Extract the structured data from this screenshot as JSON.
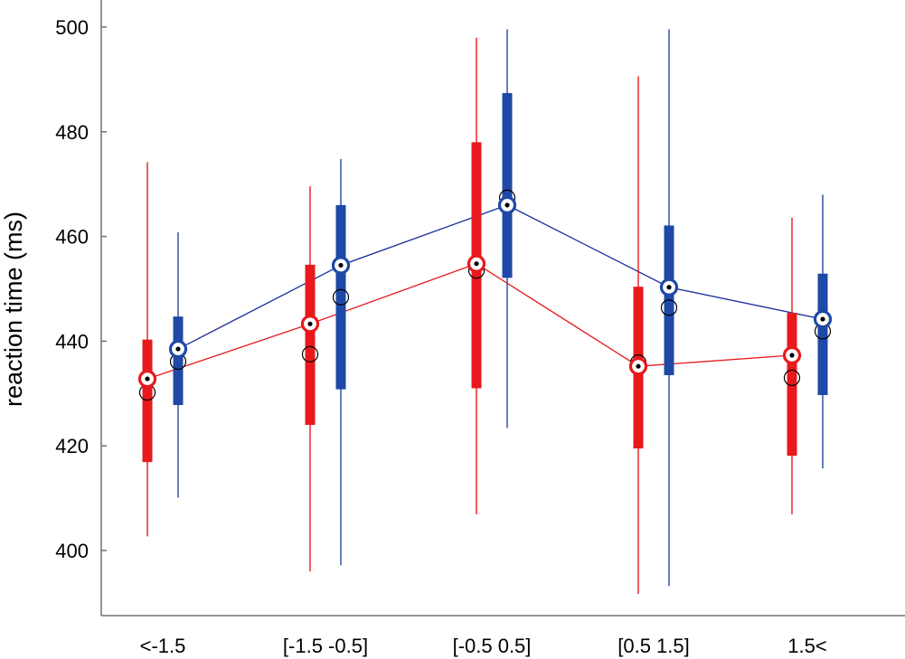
{
  "chart_data": {
    "type": "box",
    "title": "",
    "xlabel": "",
    "ylabel": "reaction time (ms)",
    "ylim": [
      389,
      504
    ],
    "yticks": [
      400,
      420,
      440,
      460,
      480,
      500
    ],
    "categories": [
      "<-1.5",
      "[-1.5 -0.5]",
      "[-0.5 0.5]",
      "[0.5 1.5]",
      "1.5<"
    ],
    "grid": false,
    "legend": "none",
    "series": [
      {
        "color": "#e8191c",
        "line_color": "#e8191c",
        "whisker_low": [
          402.7,
          396.0,
          406.9,
          391.7,
          406.9
        ],
        "q1": [
          416.9,
          424.0,
          431.0,
          419.5,
          418.1
        ],
        "q3": [
          440.3,
          454.6,
          478.0,
          450.4,
          445.4
        ],
        "whisker_high": [
          474.2,
          469.6,
          498.0,
          490.6,
          463.6
        ],
        "mean": [
          432.8,
          443.3,
          454.8,
          435.2,
          437.3
        ],
        "median": [
          430.2,
          437.5,
          453.5,
          435.9,
          433.0
        ]
      },
      {
        "color": "#1f49a6",
        "line_color": "#1b2f9a",
        "whisker_low": [
          410.1,
          397.2,
          423.4,
          393.2,
          415.7
        ],
        "q1": [
          427.8,
          430.8,
          452.1,
          433.5,
          429.7
        ],
        "q3": [
          444.7,
          466.0,
          487.4,
          462.1,
          452.9
        ],
        "whisker_high": [
          460.8,
          474.8,
          499.6,
          499.6,
          468.0
        ],
        "mean": [
          438.5,
          454.5,
          466.0,
          450.3,
          444.2
        ],
        "median": [
          436.1,
          448.4,
          467.4,
          446.4,
          441.9
        ]
      }
    ]
  }
}
